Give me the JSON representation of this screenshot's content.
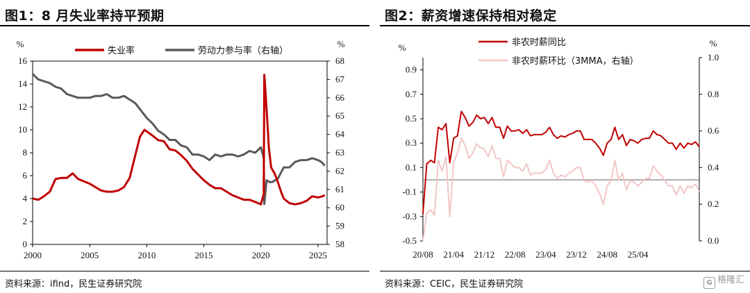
{
  "colors": {
    "red": "#c00000",
    "gray": "#595959",
    "pink": "#f2c6c6",
    "zero_line": "#808080"
  },
  "left": {
    "title": "图1：8 月失业率持平预期",
    "source": "资料来源：ifind，民生证券研究院",
    "chart_data": {
      "type": "line",
      "xlim": [
        2000,
        2025.8
      ],
      "x_ticks": [
        "2000",
        "2005",
        "2010",
        "2015",
        "2020",
        "2025"
      ],
      "ylim_left": [
        0,
        16
      ],
      "ylim_right": [
        58,
        68
      ],
      "y_ticks_left": [
        "0",
        "2",
        "4",
        "6",
        "8",
        "10",
        "12",
        "14",
        "16"
      ],
      "y_ticks_right": [
        "58",
        "59",
        "60",
        "61",
        "62",
        "63",
        "64",
        "65",
        "66",
        "67",
        "68"
      ],
      "unit_left": "%",
      "unit_right": "%",
      "legend": "top",
      "series": [
        {
          "name": "失业率",
          "axis": "left",
          "color": "#c00000",
          "points": [
            [
              2000.0,
              4.0
            ],
            [
              2000.5,
              3.9
            ],
            [
              2001.0,
              4.2
            ],
            [
              2001.5,
              4.6
            ],
            [
              2002.0,
              5.7
            ],
            [
              2002.5,
              5.8
            ],
            [
              2003.0,
              5.8
            ],
            [
              2003.5,
              6.2
            ],
            [
              2004.0,
              5.7
            ],
            [
              2004.5,
              5.5
            ],
            [
              2005.0,
              5.3
            ],
            [
              2005.5,
              5.0
            ],
            [
              2006.0,
              4.7
            ],
            [
              2006.5,
              4.6
            ],
            [
              2007.0,
              4.6
            ],
            [
              2007.5,
              4.7
            ],
            [
              2008.0,
              5.0
            ],
            [
              2008.5,
              5.8
            ],
            [
              2009.0,
              7.8
            ],
            [
              2009.4,
              9.4
            ],
            [
              2009.8,
              10.0
            ],
            [
              2010.5,
              9.5
            ],
            [
              2011.0,
              9.1
            ],
            [
              2011.5,
              9.0
            ],
            [
              2012.0,
              8.3
            ],
            [
              2012.5,
              8.2
            ],
            [
              2013.0,
              7.8
            ],
            [
              2013.5,
              7.3
            ],
            [
              2014.0,
              6.6
            ],
            [
              2014.5,
              6.1
            ],
            [
              2015.0,
              5.6
            ],
            [
              2015.5,
              5.2
            ],
            [
              2016.0,
              4.9
            ],
            [
              2016.5,
              4.9
            ],
            [
              2017.0,
              4.6
            ],
            [
              2017.5,
              4.3
            ],
            [
              2018.0,
              4.1
            ],
            [
              2018.5,
              3.9
            ],
            [
              2019.0,
              3.9
            ],
            [
              2019.5,
              3.7
            ],
            [
              2020.0,
              3.5
            ],
            [
              2020.25,
              4.4
            ],
            [
              2020.3,
              14.8
            ],
            [
              2020.4,
              13.3
            ],
            [
              2020.55,
              11.0
            ],
            [
              2020.7,
              8.4
            ],
            [
              2020.9,
              6.7
            ],
            [
              2021.2,
              6.2
            ],
            [
              2021.5,
              5.4
            ],
            [
              2021.8,
              4.5
            ],
            [
              2022.0,
              4.0
            ],
            [
              2022.5,
              3.6
            ],
            [
              2023.0,
              3.5
            ],
            [
              2023.5,
              3.6
            ],
            [
              2024.0,
              3.8
            ],
            [
              2024.5,
              4.2
            ],
            [
              2025.0,
              4.1
            ],
            [
              2025.4,
              4.2
            ],
            [
              2025.6,
              4.3
            ]
          ]
        },
        {
          "name": "劳动力参与率（右轴）",
          "axis": "right",
          "color": "#595959",
          "points": [
            [
              2000.0,
              67.3
            ],
            [
              2000.5,
              67.0
            ],
            [
              2001.0,
              66.9
            ],
            [
              2001.5,
              66.8
            ],
            [
              2002.0,
              66.6
            ],
            [
              2002.5,
              66.5
            ],
            [
              2003.0,
              66.2
            ],
            [
              2003.5,
              66.1
            ],
            [
              2004.0,
              66.0
            ],
            [
              2004.5,
              66.0
            ],
            [
              2005.0,
              66.0
            ],
            [
              2005.5,
              66.1
            ],
            [
              2006.0,
              66.1
            ],
            [
              2006.5,
              66.2
            ],
            [
              2007.0,
              66.0
            ],
            [
              2007.5,
              66.0
            ],
            [
              2008.0,
              66.1
            ],
            [
              2008.5,
              65.9
            ],
            [
              2009.0,
              65.7
            ],
            [
              2009.5,
              65.3
            ],
            [
              2010.0,
              64.9
            ],
            [
              2010.5,
              64.6
            ],
            [
              2011.0,
              64.2
            ],
            [
              2011.5,
              64.0
            ],
            [
              2012.0,
              63.7
            ],
            [
              2012.5,
              63.7
            ],
            [
              2013.0,
              63.4
            ],
            [
              2013.5,
              63.3
            ],
            [
              2014.0,
              62.9
            ],
            [
              2014.5,
              62.9
            ],
            [
              2015.0,
              62.8
            ],
            [
              2015.5,
              62.6
            ],
            [
              2016.0,
              62.9
            ],
            [
              2016.5,
              62.8
            ],
            [
              2017.0,
              62.9
            ],
            [
              2017.5,
              62.9
            ],
            [
              2018.0,
              62.8
            ],
            [
              2018.5,
              62.9
            ],
            [
              2019.0,
              63.1
            ],
            [
              2019.5,
              63.0
            ],
            [
              2020.0,
              63.3
            ],
            [
              2020.25,
              62.7
            ],
            [
              2020.3,
              60.2
            ],
            [
              2020.5,
              61.5
            ],
            [
              2020.75,
              61.4
            ],
            [
              2021.0,
              61.4
            ],
            [
              2021.5,
              61.6
            ],
            [
              2022.0,
              62.2
            ],
            [
              2022.5,
              62.2
            ],
            [
              2023.0,
              62.5
            ],
            [
              2023.5,
              62.6
            ],
            [
              2024.0,
              62.6
            ],
            [
              2024.5,
              62.7
            ],
            [
              2025.0,
              62.6
            ],
            [
              2025.3,
              62.5
            ],
            [
              2025.6,
              62.3
            ]
          ]
        }
      ]
    }
  },
  "right": {
    "title": "图2：薪资增速保持相对稳定",
    "source": "资料来源：CEIC，民生证券研究院",
    "chart_data": {
      "type": "line",
      "x_ticks": [
        "20/08",
        "21/04",
        "21/12",
        "22/08",
        "23/04",
        "23/12",
        "24/08",
        "25/04"
      ],
      "ylim_left": [
        -0.5,
        1.0
      ],
      "ylim_right": [
        0.0,
        1.0
      ],
      "y_ticks_left": [
        "-0.5",
        "-0.3",
        "-0.1",
        "0.1",
        "0.3",
        "0.5",
        "0.7",
        "0.9"
      ],
      "y_ticks_right": [
        "0.0",
        "0.2",
        "0.4",
        "0.6",
        "0.8",
        "1.0"
      ],
      "unit_left": "%",
      "unit_right": "%",
      "zero_line": 0,
      "legend": "top",
      "series": [
        {
          "name": "非农时薪同比",
          "axis": "left",
          "color": "#c00000",
          "values": [
            -0.28,
            0.13,
            0.16,
            0.14,
            0.43,
            0.41,
            0.46,
            0.14,
            0.34,
            0.36,
            0.56,
            0.51,
            0.44,
            0.47,
            0.53,
            0.5,
            0.51,
            0.46,
            0.51,
            0.43,
            0.43,
            0.34,
            0.44,
            0.4,
            0.4,
            0.41,
            0.38,
            0.41,
            0.36,
            0.37,
            0.37,
            0.37,
            0.39,
            0.43,
            0.37,
            0.34,
            0.36,
            0.35,
            0.37,
            0.38,
            0.4,
            0.4,
            0.33,
            0.33,
            0.33,
            0.3,
            0.26,
            0.2,
            0.3,
            0.33,
            0.43,
            0.33,
            0.37,
            0.28,
            0.33,
            0.32,
            0.3,
            0.33,
            0.34,
            0.34,
            0.4,
            0.37,
            0.36,
            0.33,
            0.3,
            0.3,
            0.25,
            0.3,
            0.26,
            0.3,
            0.29,
            0.31,
            0.27
          ]
        },
        {
          "name": "非农时薪环比（3MMA，右轴）",
          "axis": "right",
          "color": "#f2c6c6",
          "values": [
            0.0,
            0.15,
            0.17,
            0.14,
            0.44,
            0.38,
            0.46,
            0.13,
            0.43,
            0.48,
            0.56,
            0.52,
            0.45,
            0.48,
            0.53,
            0.51,
            0.5,
            0.46,
            0.52,
            0.45,
            0.45,
            0.35,
            0.44,
            0.42,
            0.4,
            0.4,
            0.38,
            0.42,
            0.36,
            0.37,
            0.37,
            0.37,
            0.39,
            0.44,
            0.37,
            0.34,
            0.36,
            0.35,
            0.37,
            0.38,
            0.4,
            0.4,
            0.33,
            0.32,
            0.33,
            0.3,
            0.26,
            0.2,
            0.3,
            0.33,
            0.44,
            0.33,
            0.37,
            0.28,
            0.33,
            0.32,
            0.3,
            0.32,
            0.34,
            0.34,
            0.41,
            0.38,
            0.36,
            0.33,
            0.3,
            0.3,
            0.25,
            0.3,
            0.26,
            0.3,
            0.29,
            0.31,
            0.27
          ]
        }
      ]
    }
  },
  "watermark": {
    "text": "格隆汇",
    "mark": "G"
  }
}
